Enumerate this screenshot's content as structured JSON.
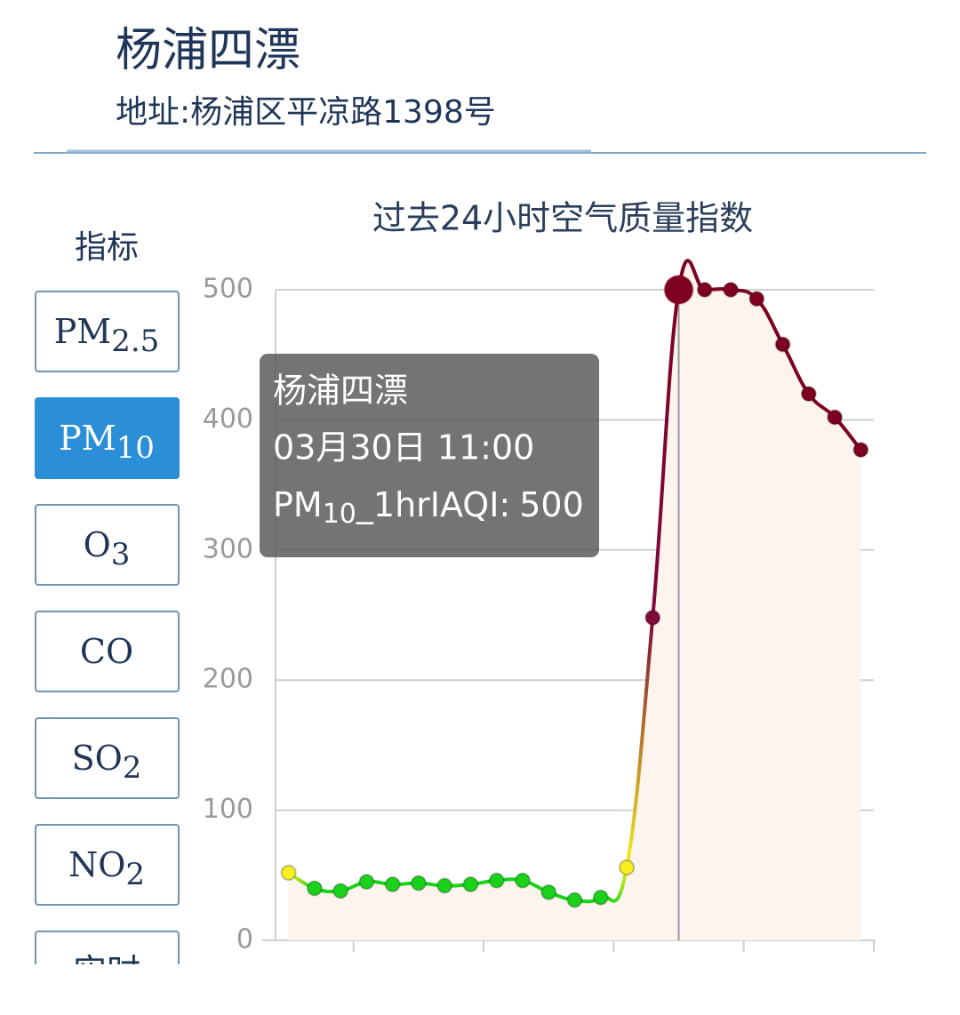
{
  "header": {
    "title": "杨浦四漂",
    "address": "地址:杨浦区平凉路1398号"
  },
  "sidebar": {
    "label": "指标",
    "buttons": [
      {
        "main": "PM",
        "sub": "2.5"
      },
      {
        "main": "PM",
        "sub": "10",
        "selected": true
      },
      {
        "main": "O",
        "sub": "3"
      },
      {
        "main": "CO"
      },
      {
        "main": "SO",
        "sub": "2"
      },
      {
        "main": "NO",
        "sub": "2"
      },
      {
        "main": "实时"
      }
    ]
  },
  "chart_data": {
    "type": "line",
    "title": "过去24小时空气质量指数",
    "categories": [
      null,
      null,
      null,
      null,
      null,
      null,
      null,
      null,
      null,
      null,
      null,
      null,
      null,
      null,
      null,
      null,
      null,
      null,
      null,
      null,
      null,
      null,
      null
    ],
    "values": [
      52,
      40,
      38,
      45,
      43,
      44,
      42,
      43,
      46,
      46,
      37,
      31,
      33,
      56,
      248,
      500,
      500,
      500,
      493,
      458,
      420,
      402,
      377
    ],
    "point_colors": [
      "#f5f01e",
      "#19d219",
      "#19d219",
      "#19d219",
      "#19d219",
      "#19d219",
      "#19d219",
      "#19d219",
      "#19d219",
      "#19d219",
      "#19d219",
      "#19d219",
      "#19d219",
      "#f5f01e",
      "#7e0a3a",
      "#7e0023",
      "#7e0023",
      "#7e0023",
      "#7e0023",
      "#7e0023",
      "#7e0023",
      "#7e0023",
      "#7e0023"
    ],
    "area_color": "#fdf4ee",
    "ylim": [
      0,
      500
    ],
    "yticks": [
      0,
      100,
      200,
      300,
      400,
      500
    ],
    "grid": true,
    "highlight_index": 15,
    "tooltip": {
      "title": "杨浦四漂",
      "time": "03月30日 11:00",
      "label_main": "PM",
      "label_sub": "10",
      "label_rest": "_1hrIAQI:"
    }
  }
}
